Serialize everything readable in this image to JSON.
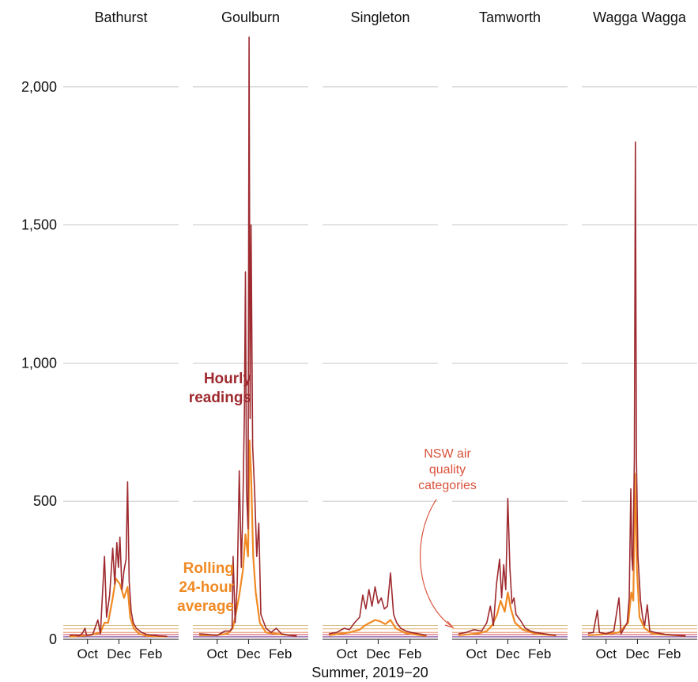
{
  "chart_data": {
    "type": "line",
    "x_title": "Summer, 2019−20",
    "y_ticks": [
      0,
      500,
      1000,
      1500,
      2000
    ],
    "y_tick_labels": [
      "0",
      "500",
      "1,000",
      "1,500",
      "2,000"
    ],
    "ylim": [
      0,
      2200
    ],
    "x_ticks": [
      {
        "label": "Oct",
        "day": 35
      },
      {
        "label": "Dec",
        "day": 96
      },
      {
        "label": "Feb",
        "day": 158
      }
    ],
    "x_range_days": [
      0,
      200
    ],
    "grid": "horizontal",
    "air_quality_category_lines": [
      {
        "value": 9,
        "color": "#6b2a8c"
      },
      {
        "value": 17,
        "color": "#c8405a"
      },
      {
        "value": 25,
        "color": "#e8906a"
      },
      {
        "value": 38,
        "color": "#e2b36e"
      },
      {
        "value": 50,
        "color": "#d8c28a"
      }
    ],
    "series_labels": {
      "hourly": "Hourly readings",
      "rolling": "Rolling 24-hour average"
    },
    "colors": {
      "hourly": "#9e2a2f",
      "rolling": "#f08a24",
      "annotation": "#d9533d"
    },
    "annotations": {
      "hourly": [
        "Hourly",
        "readings"
      ],
      "rolling": [
        "Rolling",
        "24-hour",
        "average"
      ],
      "categories": [
        "NSW air",
        "quality",
        "categories"
      ]
    },
    "panels": [
      {
        "name": "Bathurst",
        "hourly": [
          [
            0,
            14
          ],
          [
            10,
            16
          ],
          [
            18,
            12
          ],
          [
            25,
            22
          ],
          [
            30,
            40
          ],
          [
            33,
            15
          ],
          [
            45,
            18
          ],
          [
            55,
            70
          ],
          [
            60,
            20
          ],
          [
            68,
            300
          ],
          [
            72,
            80
          ],
          [
            78,
            160
          ],
          [
            84,
            330
          ],
          [
            88,
            200
          ],
          [
            92,
            350
          ],
          [
            95,
            260
          ],
          [
            98,
            370
          ],
          [
            102,
            180
          ],
          [
            106,
            250
          ],
          [
            110,
            290
          ],
          [
            113,
            570
          ],
          [
            116,
            210
          ],
          [
            120,
            100
          ],
          [
            124,
            60
          ],
          [
            130,
            40
          ],
          [
            140,
            25
          ],
          [
            150,
            18
          ],
          [
            160,
            15
          ],
          [
            175,
            12
          ],
          [
            190,
            10
          ]
        ],
        "rolling": [
          [
            0,
            10
          ],
          [
            20,
            12
          ],
          [
            40,
            15
          ],
          [
            60,
            25
          ],
          [
            68,
            60
          ],
          [
            75,
            60
          ],
          [
            84,
            150
          ],
          [
            90,
            220
          ],
          [
            98,
            200
          ],
          [
            106,
            150
          ],
          [
            113,
            190
          ],
          [
            118,
            80
          ],
          [
            125,
            40
          ],
          [
            135,
            20
          ],
          [
            150,
            12
          ],
          [
            190,
            10
          ]
        ]
      },
      {
        "name": "Goulburn",
        "hourly": [
          [
            0,
            20
          ],
          [
            15,
            18
          ],
          [
            35,
            14
          ],
          [
            50,
            30
          ],
          [
            60,
            30
          ],
          [
            64,
            40
          ],
          [
            66,
            300
          ],
          [
            70,
            60
          ],
          [
            74,
            200
          ],
          [
            78,
            610
          ],
          [
            82,
            260
          ],
          [
            85,
            490
          ],
          [
            88,
            820
          ],
          [
            90,
            1330
          ],
          [
            92,
            540
          ],
          [
            95,
            400
          ],
          [
            97,
            2180
          ],
          [
            99,
            800
          ],
          [
            101,
            1500
          ],
          [
            104,
            700
          ],
          [
            108,
            530
          ],
          [
            112,
            300
          ],
          [
            116,
            420
          ],
          [
            120,
            90
          ],
          [
            130,
            40
          ],
          [
            140,
            25
          ],
          [
            150,
            40
          ],
          [
            160,
            20
          ],
          [
            175,
            15
          ],
          [
            190,
            12
          ]
        ],
        "rolling": [
          [
            0,
            15
          ],
          [
            30,
            15
          ],
          [
            55,
            20
          ],
          [
            65,
            40
          ],
          [
            70,
            80
          ],
          [
            78,
            160
          ],
          [
            85,
            250
          ],
          [
            90,
            380
          ],
          [
            95,
            300
          ],
          [
            98,
            720
          ],
          [
            101,
            600
          ],
          [
            105,
            300
          ],
          [
            110,
            170
          ],
          [
            118,
            60
          ],
          [
            130,
            25
          ],
          [
            150,
            20
          ],
          [
            190,
            12
          ]
        ]
      },
      {
        "name": "Singleton",
        "hourly": [
          [
            0,
            20
          ],
          [
            15,
            25
          ],
          [
            30,
            40
          ],
          [
            40,
            35
          ],
          [
            50,
            60
          ],
          [
            60,
            80
          ],
          [
            66,
            160
          ],
          [
            72,
            110
          ],
          [
            78,
            180
          ],
          [
            84,
            120
          ],
          [
            90,
            190
          ],
          [
            96,
            130
          ],
          [
            102,
            150
          ],
          [
            108,
            110
          ],
          [
            114,
            120
          ],
          [
            120,
            240
          ],
          [
            126,
            90
          ],
          [
            132,
            60
          ],
          [
            140,
            40
          ],
          [
            150,
            30
          ],
          [
            160,
            25
          ],
          [
            175,
            20
          ],
          [
            190,
            15
          ]
        ],
        "rolling": [
          [
            0,
            15
          ],
          [
            20,
            20
          ],
          [
            40,
            25
          ],
          [
            60,
            35
          ],
          [
            70,
            50
          ],
          [
            80,
            60
          ],
          [
            90,
            70
          ],
          [
            100,
            65
          ],
          [
            110,
            55
          ],
          [
            120,
            70
          ],
          [
            130,
            40
          ],
          [
            150,
            22
          ],
          [
            190,
            12
          ]
        ]
      },
      {
        "name": "Tamworth",
        "hourly": [
          [
            0,
            20
          ],
          [
            15,
            25
          ],
          [
            30,
            35
          ],
          [
            45,
            30
          ],
          [
            55,
            60
          ],
          [
            62,
            120
          ],
          [
            68,
            50
          ],
          [
            74,
            200
          ],
          [
            80,
            290
          ],
          [
            84,
            150
          ],
          [
            88,
            270
          ],
          [
            92,
            180
          ],
          [
            96,
            510
          ],
          [
            100,
            260
          ],
          [
            104,
            130
          ],
          [
            108,
            150
          ],
          [
            112,
            90
          ],
          [
            120,
            70
          ],
          [
            130,
            40
          ],
          [
            140,
            30
          ],
          [
            150,
            25
          ],
          [
            160,
            22
          ],
          [
            175,
            18
          ],
          [
            190,
            15
          ]
        ],
        "rolling": [
          [
            0,
            15
          ],
          [
            20,
            18
          ],
          [
            40,
            22
          ],
          [
            55,
            30
          ],
          [
            65,
            50
          ],
          [
            75,
            90
          ],
          [
            82,
            140
          ],
          [
            90,
            100
          ],
          [
            96,
            170
          ],
          [
            102,
            110
          ],
          [
            110,
            60
          ],
          [
            125,
            35
          ],
          [
            150,
            20
          ],
          [
            190,
            14
          ]
        ]
      },
      {
        "name": "Wagga Wagga",
        "hourly": [
          [
            0,
            22
          ],
          [
            10,
            25
          ],
          [
            18,
            105
          ],
          [
            22,
            25
          ],
          [
            35,
            20
          ],
          [
            50,
            30
          ],
          [
            60,
            150
          ],
          [
            64,
            20
          ],
          [
            70,
            40
          ],
          [
            76,
            60
          ],
          [
            80,
            150
          ],
          [
            83,
            545
          ],
          [
            85,
            300
          ],
          [
            87,
            250
          ],
          [
            90,
            650
          ],
          [
            92,
            1800
          ],
          [
            94,
            660
          ],
          [
            97,
            300
          ],
          [
            102,
            140
          ],
          [
            106,
            80
          ],
          [
            110,
            50
          ],
          [
            115,
            125
          ],
          [
            120,
            30
          ],
          [
            130,
            25
          ],
          [
            150,
            18
          ],
          [
            175,
            15
          ],
          [
            190,
            12
          ]
        ],
        "rolling": [
          [
            0,
            15
          ],
          [
            30,
            18
          ],
          [
            60,
            25
          ],
          [
            78,
            60
          ],
          [
            84,
            170
          ],
          [
            88,
            140
          ],
          [
            91,
            600
          ],
          [
            95,
            250
          ],
          [
            100,
            80
          ],
          [
            110,
            40
          ],
          [
            125,
            20
          ],
          [
            190,
            12
          ]
        ]
      }
    ]
  }
}
